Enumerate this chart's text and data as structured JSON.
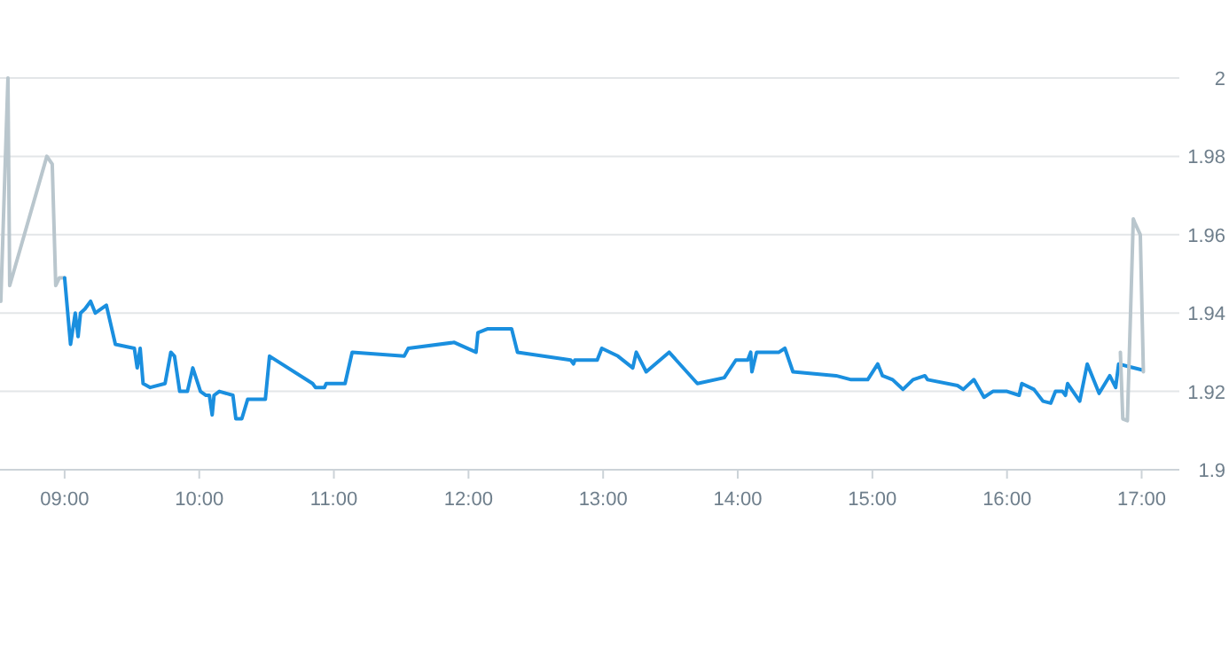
{
  "chart_data": {
    "type": "line",
    "xlim": [
      8.52,
      17.28
    ],
    "ylim": [
      1.9,
      2
    ],
    "xticks": [
      {
        "value": 9,
        "label": "09:00"
      },
      {
        "value": 10,
        "label": "10:00"
      },
      {
        "value": 11,
        "label": "11:00"
      },
      {
        "value": 12,
        "label": "12:00"
      },
      {
        "value": 13,
        "label": "13:00"
      },
      {
        "value": 14,
        "label": "14:00"
      },
      {
        "value": 15,
        "label": "15:00"
      },
      {
        "value": 16,
        "label": "16:00"
      },
      {
        "value": 17,
        "label": "17:00"
      }
    ],
    "yticks": [
      1.9,
      1.92,
      1.94,
      1.96,
      1.98,
      2
    ],
    "grid": "y",
    "marker": "none",
    "line_style": "solid",
    "series": [
      {
        "color": "#b9c6cd",
        "x": [
          8.526,
          8.579,
          8.592,
          8.868,
          8.908,
          8.934,
          8.961,
          9.0
        ],
        "values": [
          1.943,
          2.0,
          1.947,
          1.98,
          1.978,
          1.947,
          1.949,
          1.949
        ]
      },
      {
        "color": "#1a8fdf",
        "x": [
          9.0,
          9.044,
          9.079,
          9.1,
          9.118,
          9.15,
          9.193,
          9.228,
          9.31,
          9.377,
          9.518,
          9.539,
          9.561,
          9.583,
          9.636,
          9.746,
          9.789,
          9.816,
          9.855,
          9.912,
          9.952,
          10.009,
          10.05,
          10.075,
          10.096,
          10.11,
          10.149,
          10.25,
          10.272,
          10.316,
          10.36,
          10.491,
          10.522,
          10.842,
          10.864,
          10.93,
          10.943,
          11.083,
          11.136,
          11.522,
          11.553,
          11.894,
          12.056,
          12.07,
          12.144,
          12.32,
          12.364,
          12.759,
          12.78,
          12.79,
          12.956,
          12.99,
          13.11,
          13.22,
          13.246,
          13.32,
          13.49,
          13.7,
          13.9,
          13.986,
          14.074,
          14.096,
          14.105,
          14.14,
          14.306,
          14.35,
          14.41,
          14.73,
          14.842,
          14.965,
          15.04,
          15.075,
          15.15,
          15.227,
          15.302,
          15.39,
          15.41,
          15.632,
          15.675,
          15.754,
          15.829,
          15.895,
          16.0,
          16.09,
          16.11,
          16.2,
          16.267,
          16.325,
          16.36,
          16.412,
          16.434,
          16.45,
          16.54,
          16.596,
          16.684,
          16.763,
          16.807,
          16.829,
          17.0
        ],
        "values": [
          1.949,
          1.932,
          1.94,
          1.934,
          1.94,
          1.941,
          1.943,
          1.94,
          1.942,
          1.932,
          1.931,
          1.926,
          1.931,
          1.922,
          1.921,
          1.922,
          1.93,
          1.929,
          1.92,
          1.92,
          1.926,
          1.92,
          1.919,
          1.919,
          1.914,
          1.919,
          1.92,
          1.919,
          1.913,
          1.913,
          1.918,
          1.918,
          1.929,
          1.922,
          1.921,
          1.921,
          1.922,
          1.922,
          1.93,
          1.929,
          1.931,
          1.9325,
          1.93,
          1.935,
          1.936,
          1.936,
          1.93,
          1.928,
          1.927,
          1.928,
          1.928,
          1.931,
          1.929,
          1.926,
          1.93,
          1.925,
          1.93,
          1.922,
          1.9235,
          1.928,
          1.928,
          1.93,
          1.925,
          1.93,
          1.93,
          1.931,
          1.925,
          1.924,
          1.923,
          1.923,
          1.927,
          1.924,
          1.923,
          1.9205,
          1.923,
          1.924,
          1.923,
          1.9215,
          1.9205,
          1.923,
          1.9185,
          1.92,
          1.92,
          1.919,
          1.922,
          1.9205,
          1.9175,
          1.917,
          1.92,
          1.92,
          1.919,
          1.922,
          1.9175,
          1.927,
          1.9195,
          1.924,
          1.921,
          1.927,
          1.9255
        ]
      },
      {
        "color": "#b9c6cd",
        "x": [
          16.842,
          16.86,
          16.894,
          16.938,
          16.95,
          16.99,
          17.013
        ],
        "values": [
          1.93,
          1.913,
          1.9125,
          1.964,
          1.963,
          1.96,
          1.925
        ]
      }
    ]
  }
}
